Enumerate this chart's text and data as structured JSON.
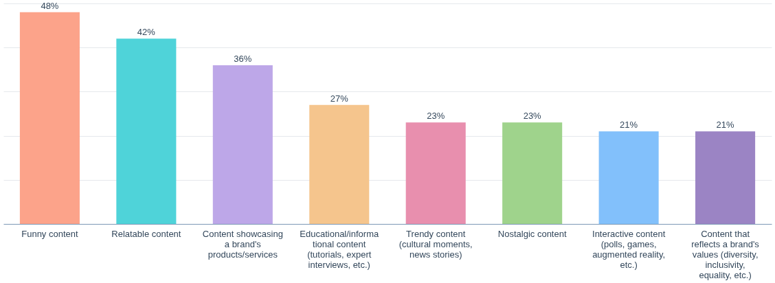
{
  "chart_data": {
    "type": "bar",
    "categories": [
      "Funny content",
      "Relatable content",
      "Content showcasing a brand's products/services",
      "Educational/informational content (tutorials, expert interviews, etc.)",
      "Trendy content (cultural moments, news stories)",
      "Nostalgic content",
      "Interactive content (polls, games, augmented reality, etc.)",
      "Content that reflects a brand's values (diversity, inclusivity, equality, etc.)"
    ],
    "values": [
      48,
      42,
      36,
      27,
      23,
      23,
      21,
      21
    ],
    "colors": [
      "#fca38a",
      "#4fd3d9",
      "#bda7e8",
      "#f5c58d",
      "#e88fae",
      "#9fd38c",
      "#82c0fb",
      "#9b84c4"
    ],
    "value_labels": [
      "48%",
      "42%",
      "36%",
      "27%",
      "23%",
      "23%",
      "21%",
      "21%"
    ],
    "ylim": [
      0,
      50
    ],
    "yticks": [
      {
        "value": 0,
        "label": null
      },
      {
        "value": 10,
        "label": null
      },
      {
        "value": 20,
        "label": null
      },
      {
        "value": 30,
        "label": null
      },
      {
        "value": 40,
        "label": null
      },
      {
        "value": 50,
        "label": null
      }
    ],
    "tick_labels": "x",
    "grid": "y"
  }
}
